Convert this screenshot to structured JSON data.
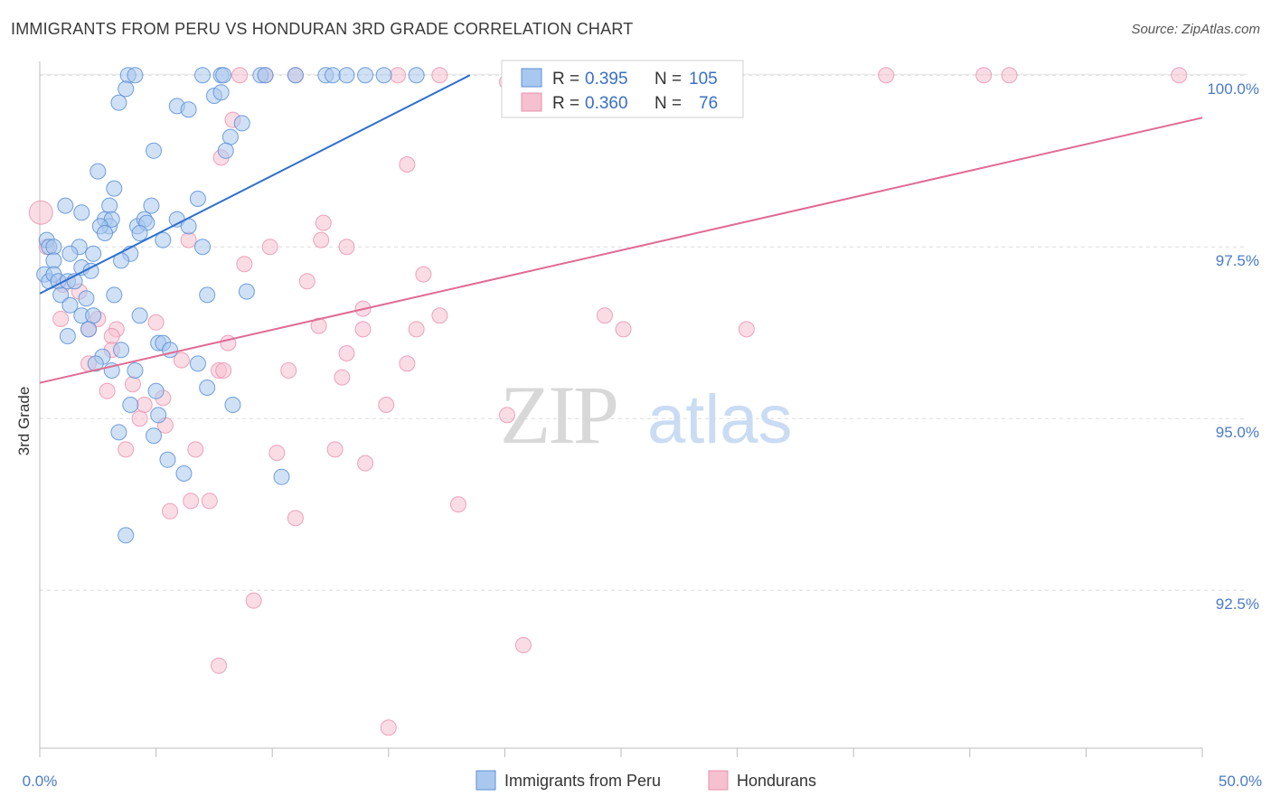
{
  "header": {
    "title": "IMMIGRANTS FROM PERU VS HONDURAN 3RD GRADE CORRELATION CHART",
    "source": "Source: ZipAtlas.com"
  },
  "watermark": {
    "zip": "ZIP",
    "atlas": "atlas"
  },
  "colors": {
    "blue_fill": "#a9c8ef",
    "blue_stroke": "#5b8fd6",
    "blue_line": "#2e6fd0",
    "pink_fill": "#f5c0cf",
    "pink_stroke": "#e890ad",
    "pink_line": "#e06a92",
    "tick_label": "#4a7bc8",
    "grid": "#dddddd"
  },
  "legend": {
    "rows": [
      {
        "r_label": "R =",
        "r_value": "0.395",
        "n_label": "N =",
        "n_value": "105"
      },
      {
        "r_label": "R =",
        "r_value": "0.360",
        "n_label": "N =",
        "n_value": "76"
      }
    ]
  },
  "chart_data": {
    "type": "scatter",
    "title": "IMMIGRANTS FROM PERU VS HONDURAN 3RD GRADE CORRELATION CHART",
    "xlabel": "",
    "ylabel": "3rd Grade",
    "xlim": [
      0,
      50
    ],
    "ylim": [
      90.2,
      100.2
    ],
    "x_tick_labels": [
      "0.0%",
      "50.0%"
    ],
    "y_ticks": [
      92.5,
      95.0,
      97.5,
      100.0
    ],
    "y_tick_labels": [
      "92.5%",
      "95.0%",
      "97.5%",
      "100.0%"
    ],
    "grid": true,
    "legend_position": "top-center",
    "series": [
      {
        "name": "Immigrants from Peru",
        "color": "#a9c8ef",
        "trend": {
          "x": [
            0,
            18.5
          ],
          "y": [
            96.82,
            100.0
          ]
        },
        "points": [
          [
            3.8,
            100
          ],
          [
            4.1,
            100
          ],
          [
            7.0,
            100
          ],
          [
            7.8,
            100
          ],
          [
            7.9,
            100
          ],
          [
            9.5,
            100
          ],
          [
            9.7,
            100
          ],
          [
            11,
            100
          ],
          [
            12.3,
            100
          ],
          [
            12.6,
            100
          ],
          [
            13.2,
            100
          ],
          [
            14.0,
            100
          ],
          [
            14.8,
            100
          ],
          [
            16.2,
            100
          ],
          [
            3.7,
            99.8
          ],
          [
            7.5,
            99.7
          ],
          [
            3.4,
            99.6
          ],
          [
            5.9,
            99.55
          ],
          [
            6.4,
            99.5
          ],
          [
            7.8,
            99.75
          ],
          [
            8.7,
            99.3
          ],
          [
            8.2,
            99.1
          ],
          [
            8.0,
            98.9
          ],
          [
            4.9,
            98.9
          ],
          [
            2.5,
            98.6
          ],
          [
            3.2,
            98.35
          ],
          [
            6.8,
            98.2
          ],
          [
            4.8,
            98.1
          ],
          [
            1.1,
            98.1
          ],
          [
            1.8,
            98.0
          ],
          [
            3.0,
            98.1
          ],
          [
            2.8,
            97.9
          ],
          [
            3.0,
            97.8
          ],
          [
            3.1,
            97.9
          ],
          [
            2.6,
            97.8
          ],
          [
            4.2,
            97.8
          ],
          [
            4.5,
            97.9
          ],
          [
            4.6,
            97.85
          ],
          [
            5.9,
            97.9
          ],
          [
            6.4,
            97.8
          ],
          [
            7.0,
            97.5
          ],
          [
            4.3,
            97.7
          ],
          [
            2.8,
            97.7
          ],
          [
            0.3,
            97.6
          ],
          [
            0.4,
            97.5
          ],
          [
            0.6,
            97.5
          ],
          [
            1.7,
            97.5
          ],
          [
            1.3,
            97.4
          ],
          [
            2.3,
            97.4
          ],
          [
            3.9,
            97.4
          ],
          [
            5.3,
            97.6
          ],
          [
            3.5,
            97.3
          ],
          [
            0.6,
            97.3
          ],
          [
            0.2,
            97.1
          ],
          [
            0.4,
            97.0
          ],
          [
            0.6,
            97.1
          ],
          [
            0.8,
            97.0
          ],
          [
            1.2,
            97.0
          ],
          [
            1.8,
            97.2
          ],
          [
            2.2,
            97.15
          ],
          [
            1.5,
            97.0
          ],
          [
            3.2,
            96.8
          ],
          [
            0.9,
            96.8
          ],
          [
            2.0,
            96.75
          ],
          [
            1.3,
            96.65
          ],
          [
            1.8,
            96.5
          ],
          [
            2.3,
            96.5
          ],
          [
            7.2,
            96.8
          ],
          [
            8.9,
            96.85
          ],
          [
            2.1,
            96.3
          ],
          [
            1.2,
            96.2
          ],
          [
            4.3,
            96.5
          ],
          [
            3.5,
            96.0
          ],
          [
            2.7,
            95.9
          ],
          [
            5.1,
            96.1
          ],
          [
            5.3,
            96.1
          ],
          [
            5.6,
            96.0
          ],
          [
            2.4,
            95.8
          ],
          [
            3.1,
            95.7
          ],
          [
            4.1,
            95.7
          ],
          [
            6.8,
            95.8
          ],
          [
            5.0,
            95.4
          ],
          [
            7.2,
            95.45
          ],
          [
            3.9,
            95.2
          ],
          [
            8.3,
            95.2
          ],
          [
            5.1,
            95.05
          ],
          [
            3.4,
            94.8
          ],
          [
            4.9,
            94.75
          ],
          [
            5.5,
            94.4
          ],
          [
            6.2,
            94.2
          ],
          [
            10.4,
            94.15
          ],
          [
            3.7,
            93.3
          ]
        ]
      },
      {
        "name": "Hondurans",
        "color": "#f5c0cf",
        "trend": {
          "x": [
            0,
            50
          ],
          "y": [
            95.52,
            99.38
          ]
        },
        "points": [
          [
            0.05,
            98.0
          ],
          [
            0.3,
            97.5
          ],
          [
            8.6,
            100
          ],
          [
            9.7,
            100
          ],
          [
            11.0,
            100
          ],
          [
            15.4,
            100
          ],
          [
            17.2,
            100
          ],
          [
            20.1,
            99.9
          ],
          [
            20.6,
            99.95
          ],
          [
            28.4,
            100
          ],
          [
            29.5,
            100
          ],
          [
            36.4,
            100
          ],
          [
            40.6,
            100
          ],
          [
            41.7,
            100
          ],
          [
            49.0,
            100
          ],
          [
            8.3,
            99.35
          ],
          [
            7.8,
            98.8
          ],
          [
            15.8,
            98.7
          ],
          [
            12.2,
            97.85
          ],
          [
            12.1,
            97.6
          ],
          [
            6.4,
            97.6
          ],
          [
            9.9,
            97.5
          ],
          [
            13.2,
            97.5
          ],
          [
            8.8,
            97.25
          ],
          [
            11.5,
            97.0
          ],
          [
            16.5,
            97.1
          ],
          [
            1.0,
            96.95
          ],
          [
            1.7,
            96.85
          ],
          [
            13.9,
            96.6
          ],
          [
            17.2,
            96.5
          ],
          [
            24.3,
            96.5
          ],
          [
            25.1,
            96.3
          ],
          [
            30.4,
            96.3
          ],
          [
            12.0,
            96.35
          ],
          [
            13.9,
            96.3
          ],
          [
            16.2,
            96.3
          ],
          [
            2.1,
            96.3
          ],
          [
            3.3,
            96.3
          ],
          [
            5.0,
            96.4
          ],
          [
            0.9,
            96.45
          ],
          [
            2.5,
            96.45
          ],
          [
            3.1,
            96.2
          ],
          [
            8.1,
            96.1
          ],
          [
            13.2,
            95.95
          ],
          [
            3.1,
            96.0
          ],
          [
            6.1,
            95.85
          ],
          [
            15.8,
            95.8
          ],
          [
            7.7,
            95.7
          ],
          [
            2.1,
            95.8
          ],
          [
            10.7,
            95.7
          ],
          [
            13.0,
            95.6
          ],
          [
            7.9,
            95.7
          ],
          [
            5.3,
            95.3
          ],
          [
            2.9,
            95.4
          ],
          [
            4.0,
            95.5
          ],
          [
            4.5,
            95.2
          ],
          [
            4.3,
            95.0
          ],
          [
            14.9,
            95.2
          ],
          [
            20.1,
            95.05
          ],
          [
            5.4,
            94.9
          ],
          [
            3.7,
            94.55
          ],
          [
            6.7,
            94.55
          ],
          [
            10.2,
            94.5
          ],
          [
            12.7,
            94.55
          ],
          [
            14.0,
            94.35
          ],
          [
            6.5,
            93.8
          ],
          [
            7.3,
            93.8
          ],
          [
            18.0,
            93.75
          ],
          [
            5.6,
            93.65
          ],
          [
            11.0,
            93.55
          ],
          [
            9.2,
            92.35
          ],
          [
            20.8,
            91.7
          ],
          [
            7.7,
            91.4
          ],
          [
            15.0,
            90.5
          ]
        ]
      }
    ]
  }
}
